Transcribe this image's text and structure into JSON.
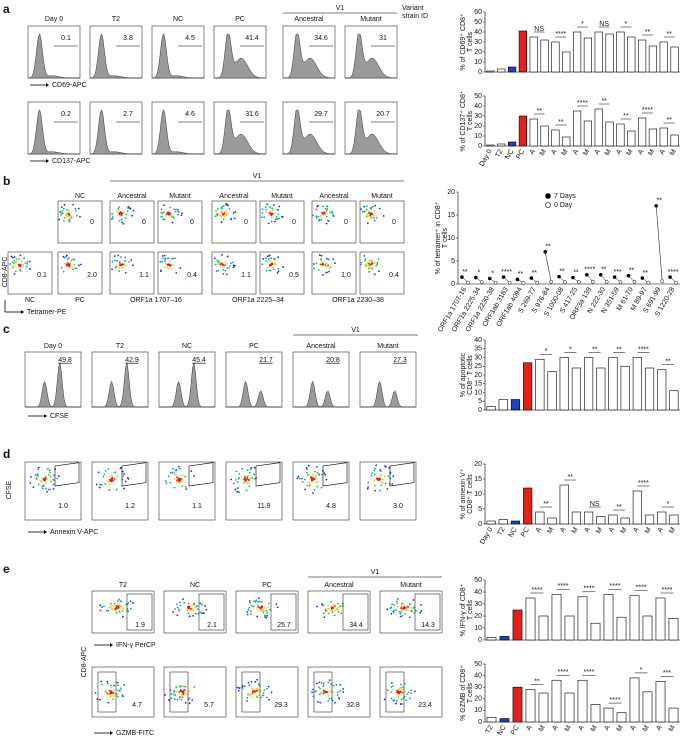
{
  "a": {
    "label": "a",
    "v1": "V1",
    "variant_id": [
      "Variant",
      "strain ID"
    ],
    "titles": [
      "Day 0",
      "T2",
      "NC",
      "PC",
      "Ancestral",
      "Mutant"
    ],
    "row1": {
      "values": [
        "0.1",
        "3.8",
        "4.5",
        "41.4",
        "34.6",
        "31"
      ],
      "axis": "CD69-APC"
    },
    "row2": {
      "values": [
        "0.2",
        "2.7",
        "4.6",
        "31.6",
        "29.7",
        "20.7"
      ],
      "axis": "CD137-APC"
    },
    "chart1": {
      "type": "bar",
      "ylabel": [
        "% of CD69⁺ CD8⁺",
        "T cells"
      ],
      "ylim": [
        0,
        60
      ],
      "yticks": [
        0,
        10,
        20,
        30,
        40,
        50,
        60
      ],
      "values": [
        1,
        3,
        5,
        41,
        35,
        32,
        30,
        20,
        40,
        34,
        40,
        38,
        40,
        35,
        32,
        26,
        30,
        25
      ],
      "colors": [
        "#ffffff",
        "#ffffff",
        "#1f3fc7",
        "#e3201b",
        "#ffffff",
        "#ffffff",
        "#ffffff",
        "#ffffff",
        "#ffffff",
        "#ffffff",
        "#ffffff",
        "#ffffff",
        "#ffffff",
        "#ffffff",
        "#ffffff",
        "#ffffff",
        "#ffffff",
        "#ffffff"
      ],
      "significance": [
        "NS",
        "****",
        "*",
        "NS",
        "*",
        "**",
        "**"
      ]
    },
    "chart2": {
      "type": "bar",
      "ylabel": [
        "% of CD137⁺ CD8⁺",
        "T cells"
      ],
      "ylim": [
        0,
        50
      ],
      "yticks": [
        0,
        10,
        20,
        30,
        40,
        50
      ],
      "categories": [
        "Day 0",
        "T2",
        "NC",
        "PC",
        "A",
        "M",
        "A",
        "M",
        "A",
        "M",
        "A",
        "M",
        "A",
        "M",
        "A",
        "M",
        "A",
        "M"
      ],
      "values": [
        1,
        2,
        4,
        30,
        27,
        20,
        16,
        9,
        35,
        25,
        37,
        24,
        22,
        15,
        28,
        17,
        18,
        11
      ],
      "colors": [
        "#ffffff",
        "#ffffff",
        "#1f3fc7",
        "#e3201b",
        "#ffffff",
        "#ffffff",
        "#ffffff",
        "#ffffff",
        "#ffffff",
        "#ffffff",
        "#ffffff",
        "#ffffff",
        "#ffffff",
        "#ffffff",
        "#ffffff",
        "#ffffff",
        "#ffffff",
        "#ffffff"
      ],
      "significance": [
        "**",
        "**",
        "****",
        "**",
        "**",
        "****",
        "**"
      ]
    }
  },
  "b": {
    "label": "b",
    "v1": "V1",
    "titles": [
      "NC",
      "Ancestral",
      "Mutant",
      "Ancestral",
      "Mutant",
      "Ancestral",
      "Mutant"
    ],
    "row1": [
      "0",
      "0",
      "0",
      "0",
      "0",
      "0",
      "0"
    ],
    "row2": [
      "0.1",
      "2.0",
      "1.1",
      "0.4",
      "1.1",
      "0.5",
      "1.0",
      "0.4"
    ],
    "row2_labels": [
      "NC",
      "PC"
    ],
    "peptides": [
      "ORF1a 1707–16",
      "ORF1a 2225–34",
      "ORF1a 2230–38"
    ],
    "yaxis": "CD8-APC",
    "xaxis": "Tetramer-PE",
    "chart": {
      "type": "paired-dot",
      "ylabel": [
        "% of tetramer⁺ in CD8⁺",
        "T cells"
      ],
      "ylim": [
        0,
        20
      ],
      "yticks": [
        0,
        5,
        10,
        15,
        20
      ],
      "categories": [
        "ORF1a 1707-16",
        "ORF1a 2225-34",
        "ORF1a 2230-38",
        "ORF1ab 3183",
        "ORF1ab 4094",
        "S 269-77",
        "S 976-84",
        "S 1000-08",
        "S 417-25",
        "ORF3a 139",
        "N 222-30",
        "N 351-59",
        "M 61-70",
        "M 89-97",
        "S 691-99",
        "S 1220-28"
      ],
      "series": [
        {
          "name": "7 Days",
          "color": "#000000",
          "values": [
            1.5,
            1.4,
            1.2,
            1.5,
            1,
            1.3,
            7,
            1.6,
            1.4,
            2,
            2,
            1.5,
            1.8,
            1.3,
            17,
            1.5
          ]
        },
        {
          "name": "0 Day",
          "color": "#ffffff",
          "values": [
            0.3,
            0.4,
            0.3,
            0.3,
            0.2,
            0.3,
            0.5,
            0.4,
            0.4,
            0.5,
            0.5,
            0.4,
            0.5,
            0.3,
            0.6,
            0.3
          ]
        }
      ],
      "significance": [
        "**",
        "*",
        "*",
        "****",
        "**",
        "**",
        "**",
        "**",
        "**",
        "****",
        "**",
        "***",
        "**",
        "**",
        "**",
        "****"
      ]
    }
  },
  "c": {
    "label": "c",
    "v1": "V1",
    "titles": [
      "Day 0",
      "T2",
      "NC",
      "PC",
      "Ancestral",
      "Mutant"
    ],
    "values": [
      "49.8",
      "42.9",
      "45.4",
      "21.7",
      "20.8",
      "27.3"
    ],
    "axis": "CFSE",
    "chart": {
      "type": "bar",
      "ylabel": [
        "% of apoptotic",
        "CD8⁺ T cells"
      ],
      "ylim": [
        0,
        40
      ],
      "yticks": [
        0,
        5,
        10,
        15,
        20,
        25,
        30,
        35,
        40
      ],
      "values": [
        2,
        6,
        6,
        27,
        29,
        22,
        30,
        24,
        30,
        24,
        30,
        25,
        30,
        24,
        23,
        11
      ],
      "colors": [
        "#ffffff",
        "#ffffff",
        "#1f3fc7",
        "#e3201b",
        "#ffffff",
        "#ffffff",
        "#ffffff",
        "#ffffff",
        "#ffffff",
        "#ffffff",
        "#ffffff",
        "#ffffff",
        "#ffffff",
        "#ffffff",
        "#ffffff",
        "#ffffff"
      ],
      "significance": [
        "*",
        "*",
        "**",
        "**",
        "****",
        "**"
      ]
    }
  },
  "d": {
    "label": "d",
    "values": [
      "1.0",
      "1.2",
      "1.1",
      "11.9",
      "4.8",
      "3.0"
    ],
    "yaxis": "CFSE",
    "xaxis": "Annexin V-APC",
    "chart": {
      "type": "bar",
      "ylabel": [
        "% of annexin V⁺",
        "CD8⁺ T cells"
      ],
      "ylim": [
        0,
        20
      ],
      "yticks": [
        0,
        5,
        10,
        15,
        20
      ],
      "categories": [
        "Day 0",
        "T2",
        "NC",
        "PC",
        "A",
        "M",
        "A",
        "M",
        "A",
        "M",
        "A",
        "M",
        "A",
        "M",
        "A",
        "M"
      ],
      "values": [
        1,
        1.5,
        1,
        12,
        4,
        2,
        13,
        4,
        4,
        2.5,
        3,
        2,
        11,
        3,
        4,
        3
      ],
      "colors": [
        "#ffffff",
        "#ffffff",
        "#1f3fc7",
        "#e3201b",
        "#ffffff",
        "#ffffff",
        "#ffffff",
        "#ffffff",
        "#ffffff",
        "#ffffff",
        "#ffffff",
        "#ffffff",
        "#ffffff",
        "#ffffff",
        "#ffffff",
        "#ffffff"
      ],
      "significance": [
        "**",
        "**",
        "NS",
        "**",
        "****",
        "*"
      ]
    }
  },
  "e": {
    "label": "e",
    "v1": "V1",
    "titles": [
      "T2",
      "NC",
      "PC",
      "Ancestral",
      "Mutant"
    ],
    "row1": {
      "values": [
        "1.9",
        "2.1",
        "25.7",
        "34.4",
        "14.3"
      ],
      "axis": "IFN-γ PerCP"
    },
    "row2": {
      "values": [
        "4.7",
        "5.7",
        "29.3",
        "32.8",
        "23.4"
      ],
      "axis": "GZMB-FITC"
    },
    "yaxis": "CD8-APC",
    "chart1": {
      "type": "bar",
      "ylabel": [
        "% IFN-γ of CD8⁺",
        "T cells"
      ],
      "ylim": [
        0,
        50
      ],
      "yticks": [
        0,
        10,
        20,
        30,
        40,
        50
      ],
      "values": [
        2,
        3,
        25,
        35,
        20,
        38,
        20,
        36,
        14,
        38,
        19,
        37,
        20,
        35,
        18
      ],
      "colors": [
        "#ffffff",
        "#1f3fc7",
        "#e3201b",
        "#ffffff",
        "#ffffff",
        "#ffffff",
        "#ffffff",
        "#ffffff",
        "#ffffff",
        "#ffffff",
        "#ffffff",
        "#ffffff",
        "#ffffff",
        "#ffffff",
        "#ffffff"
      ],
      "significance": [
        "****",
        "****",
        "****",
        "****",
        "****",
        "****"
      ]
    },
    "chart2": {
      "type": "bar",
      "ylabel": [
        "% GZMB of CD8⁺",
        "T cells"
      ],
      "ylim": [
        0,
        50
      ],
      "yticks": [
        0,
        10,
        20,
        30,
        40,
        50
      ],
      "categories": [
        "T2",
        "NC",
        "PC",
        "A",
        "M",
        "A",
        "M",
        "A",
        "M",
        "A",
        "M",
        "A",
        "M",
        "A",
        "M"
      ],
      "values": [
        4,
        3,
        30,
        28,
        25,
        36,
        25,
        36,
        15,
        12,
        8,
        38,
        26,
        35,
        12
      ],
      "colors": [
        "#ffffff",
        "#1f3fc7",
        "#e3201b",
        "#ffffff",
        "#ffffff",
        "#ffffff",
        "#ffffff",
        "#ffffff",
        "#ffffff",
        "#ffffff",
        "#ffffff",
        "#ffffff",
        "#ffffff",
        "#ffffff",
        "#ffffff"
      ],
      "significance": [
        "**",
        "****",
        "****",
        "****",
        "*",
        "***"
      ]
    }
  }
}
